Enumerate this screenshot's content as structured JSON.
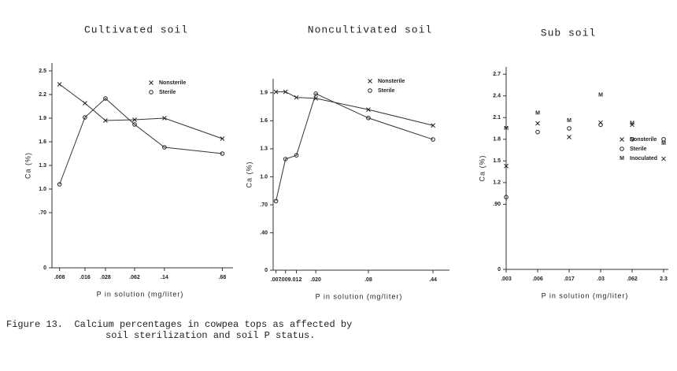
{
  "chart_data": [
    {
      "type": "line",
      "title": "Cultivated soil",
      "xlabel": "P in solution (mg/liter)",
      "ylabel": "Ca (%)",
      "xscale": "log",
      "xlim": [
        0.0065,
        0.8
      ],
      "xticks": [
        {
          "value": 0.008,
          "label": ".008"
        },
        {
          "value": 0.016,
          "label": ".016"
        },
        {
          "value": 0.028,
          "label": ".028"
        },
        {
          "value": 0.062,
          "label": ".062"
        },
        {
          "value": 0.14,
          "label": ".14"
        },
        {
          "value": 0.68,
          "label": ".68"
        }
      ],
      "ylim": [
        0,
        2.6
      ],
      "yticks": [
        0,
        {
          "value": 0.7,
          "label": ".70"
        },
        {
          "value": 1,
          "label": "1.0"
        },
        1.3,
        1.6,
        1.9,
        2.2,
        2.5
      ],
      "legend": "upper right",
      "series": [
        {
          "name": "Nonsterile",
          "marker": "x",
          "color": "#222",
          "x": [
            0.008,
            0.016,
            0.028,
            0.062,
            0.14,
            0.68
          ],
          "values": [
            2.33,
            2.09,
            1.87,
            1.88,
            1.9,
            1.64
          ]
        },
        {
          "name": "Sterile",
          "marker": "o",
          "color": "#222",
          "x": [
            0.008,
            0.016,
            0.028,
            0.062,
            0.14,
            0.68
          ],
          "values": [
            1.06,
            1.91,
            2.15,
            1.82,
            1.53,
            1.45
          ]
        }
      ]
    },
    {
      "type": "line",
      "title": "Noncultivated soil",
      "xlabel": "P in solution (mg/liter)",
      "ylabel": "Ca (%)",
      "xscale": "log",
      "xlim": [
        0.0065,
        0.6
      ],
      "xticks": [
        {
          "value": 0.007,
          "label": ".007"
        },
        {
          "value": 0.009,
          "label": ".009"
        },
        {
          "value": 0.012,
          "label": ".012"
        },
        {
          "value": 0.02,
          "label": ".020"
        },
        {
          "value": 0.08,
          "label": ".08"
        },
        {
          "value": 0.44,
          "label": ".44"
        }
      ],
      "ylim": [
        0,
        2.05
      ],
      "yticks": [
        0,
        {
          "value": 0.4,
          "label": ".40"
        },
        {
          "value": 0.7,
          "label": ".70"
        },
        {
          "value": 1,
          "label": "1.0"
        },
        1.3,
        1.6,
        1.9
      ],
      "legend": "upper right",
      "series": [
        {
          "name": "Nonsterile",
          "marker": "x",
          "color": "#222",
          "x": [
            0.007,
            0.009,
            0.012,
            0.02,
            0.08,
            0.44
          ],
          "values": [
            1.91,
            1.91,
            1.85,
            1.84,
            1.72,
            1.55
          ]
        },
        {
          "name": "Sterile",
          "marker": "o",
          "color": "#222",
          "x": [
            0.007,
            0.009,
            0.012,
            0.02,
            0.08,
            0.44
          ],
          "values": [
            0.74,
            1.19,
            1.23,
            1.89,
            1.63,
            1.4
          ]
        }
      ]
    },
    {
      "type": "scatter",
      "title": "Sub soil",
      "xlabel": "P in solution (mg/liter)",
      "ylabel": "Ca (%)",
      "categories": [
        ".003",
        ".006",
        ".017",
        ".03",
        ".062",
        "2.3"
      ],
      "ylim": [
        0,
        2.8
      ],
      "yticks": [
        0,
        {
          "value": 0.9,
          "label": ".90"
        },
        1.2,
        1.5,
        1.8,
        2.1,
        2.4,
        2.7
      ],
      "legend": "right",
      "series": [
        {
          "name": "Nonsterile",
          "marker": "x",
          "color": "#222",
          "values": [
            1.43,
            2.02,
            1.83,
            2.03,
            2.0,
            1.53
          ]
        },
        {
          "name": "Sterile",
          "marker": "o",
          "color": "#222",
          "values": [
            1.0,
            1.9,
            1.95,
            2.0,
            1.8,
            1.8
          ]
        },
        {
          "name": "Inoculated",
          "marker": "M",
          "color": "#222",
          "values": [
            1.95,
            2.16,
            2.06,
            2.41,
            2.02,
            1.74
          ]
        }
      ]
    }
  ],
  "caption": [
    "Figure 13.  Calcium percentages in cowpea tops as affected by",
    "soil sterilization and soil P status."
  ]
}
